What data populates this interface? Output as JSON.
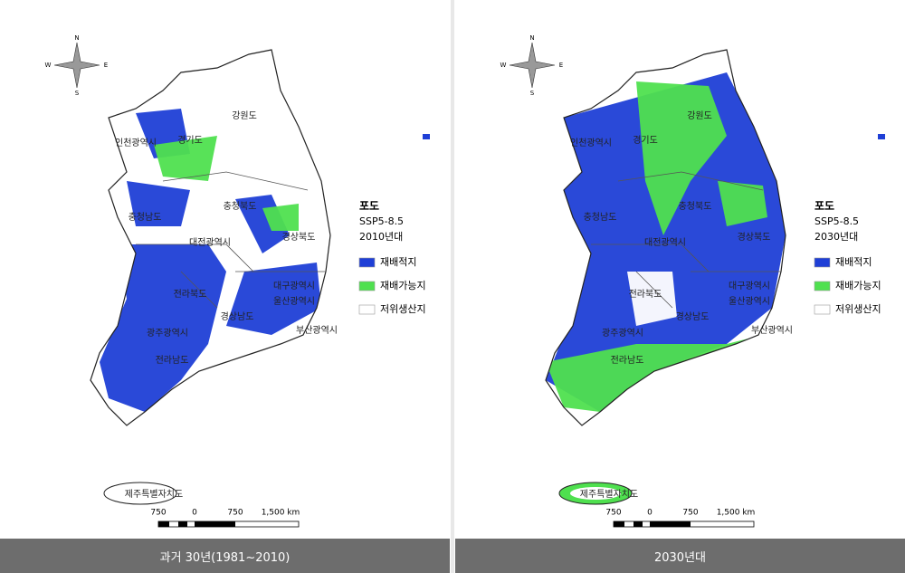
{
  "compass": {
    "north": "N",
    "south": "S",
    "west": "W",
    "east": "E"
  },
  "map": {
    "regions": [
      "인천광역시",
      "경기도",
      "강원도",
      "충청남도",
      "충청북도",
      "대전광역시",
      "경상북도",
      "전라북도",
      "대구광역시",
      "울산광역시",
      "경상남도",
      "광주광역시",
      "전라남도",
      "부산광역시",
      "제주특별자치도"
    ]
  },
  "scale": {
    "labels": [
      "750",
      "0",
      "750",
      "1,500 km"
    ]
  },
  "panels": [
    {
      "legend": {
        "crop": "포도",
        "scenario": "SSP5-8.5",
        "period": "2010년대",
        "items": [
          "재배적지",
          "재배가능지",
          "저위생산지"
        ]
      },
      "caption": "과거 30년(1981~2010)"
    },
    {
      "legend": {
        "crop": "포도",
        "scenario": "SSP5-8.5",
        "period": "2030년대",
        "items": [
          "재배적지",
          "재배가능지",
          "저위생산지"
        ]
      },
      "caption": "2030년대"
    }
  ]
}
